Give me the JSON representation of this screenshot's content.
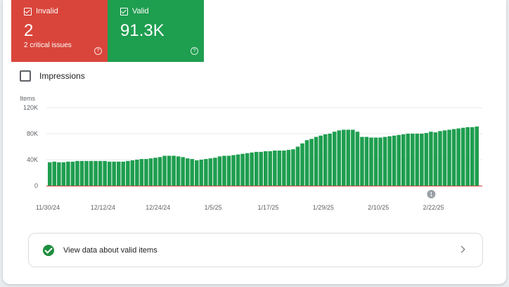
{
  "tiles": {
    "invalid": {
      "label": "Invalid",
      "value": "2",
      "sub": "2 critical issues",
      "help": "?",
      "color": "#d9453b"
    },
    "valid": {
      "label": "Valid",
      "value": "91.3K",
      "sub": "",
      "help": "?",
      "color": "#1e9e4f"
    }
  },
  "impressions": {
    "label": "Impressions",
    "checked": false
  },
  "chart_data": {
    "type": "bar",
    "ylabel": "Items",
    "ylim": [
      0,
      120000
    ],
    "y_ticks": [
      "120K",
      "80K",
      "40K",
      "0"
    ],
    "y_tick_values": [
      120000,
      80000,
      40000,
      0
    ],
    "x_tick_labels": [
      "11/30/24",
      "12/12/24",
      "12/24/24",
      "1/5/25",
      "1/17/25",
      "1/29/25",
      "2/10/25",
      "2/22/25"
    ],
    "bar_color": "#1e9e4f",
    "annotation": {
      "label": "1",
      "category_index": 83
    },
    "grid": true,
    "values": [
      36000,
      37000,
      36000,
      36000,
      37000,
      37000,
      38000,
      38000,
      38000,
      38000,
      38000,
      38000,
      38000,
      37000,
      37000,
      37000,
      37000,
      38000,
      39000,
      40000,
      41000,
      41000,
      42000,
      43000,
      44000,
      46000,
      46000,
      46000,
      45000,
      44000,
      42000,
      41000,
      39000,
      40000,
      41000,
      42000,
      43000,
      45000,
      46000,
      46000,
      47000,
      48000,
      49000,
      50000,
      51000,
      52000,
      52000,
      53000,
      53000,
      54000,
      54000,
      54000,
      55000,
      56000,
      60000,
      65000,
      70000,
      72000,
      75000,
      77000,
      79000,
      80000,
      83000,
      85000,
      86000,
      86000,
      86000,
      83000,
      75000,
      75000,
      74000,
      74000,
      74000,
      75000,
      76000,
      77000,
      78000,
      79000,
      80000,
      80000,
      80000,
      80000,
      81000,
      83000,
      82000,
      84000,
      85000,
      86000,
      87000,
      88000,
      89000,
      90000,
      90000,
      91000
    ]
  },
  "cta": {
    "label": "View data about valid items"
  },
  "icons": [
    "checkbox-checked-icon",
    "help-circle-icon",
    "check-circle-icon",
    "chevron-right-icon"
  ]
}
